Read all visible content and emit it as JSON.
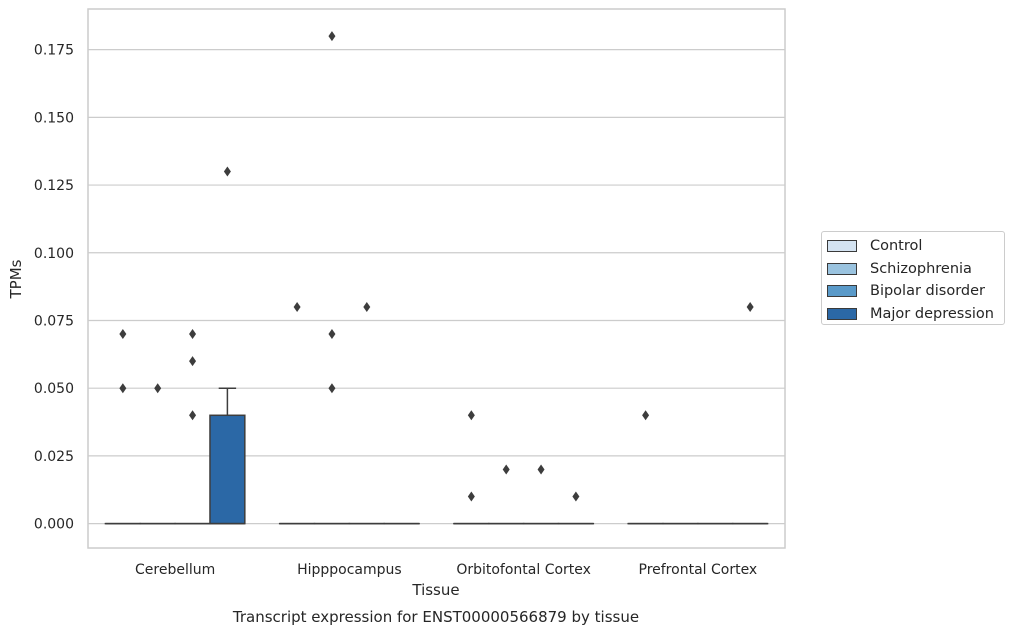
{
  "chart_data": {
    "type": "box",
    "title": "Transcript expression for ENST00000566879 by tissue",
    "xlabel": "Tissue",
    "ylabel": "TPMs",
    "categories": [
      "Cerebellum",
      "Hipppocampus",
      "Orbitofontal Cortex",
      "Prefrontal Cortex"
    ],
    "ylim": [
      -0.009,
      0.19
    ],
    "yticks": [
      "0.000",
      "0.025",
      "0.050",
      "0.075",
      "0.100",
      "0.125",
      "0.150",
      "0.175"
    ],
    "grid": true,
    "legend_position": "right",
    "series": [
      {
        "name": "Control",
        "color": "#d4e3f1",
        "boxes": [
          {
            "q1": 0,
            "median": 0,
            "q3": 0,
            "whisker_low": 0,
            "whisker_high": 0,
            "outliers": [
              0.07,
              0.05
            ]
          },
          {
            "q1": 0,
            "median": 0,
            "q3": 0,
            "whisker_low": 0,
            "whisker_high": 0,
            "outliers": [
              0.08
            ]
          },
          {
            "q1": 0,
            "median": 0,
            "q3": 0,
            "whisker_low": 0,
            "whisker_high": 0,
            "outliers": [
              0.04,
              0.01
            ]
          },
          {
            "q1": 0,
            "median": 0,
            "q3": 0,
            "whisker_low": 0,
            "whisker_high": 0,
            "outliers": [
              0.04
            ]
          }
        ]
      },
      {
        "name": "Schizophrenia",
        "color": "#9ac3df",
        "boxes": [
          {
            "q1": 0,
            "median": 0,
            "q3": 0,
            "whisker_low": 0,
            "whisker_high": 0,
            "outliers": [
              0.05
            ]
          },
          {
            "q1": 0,
            "median": 0,
            "q3": 0,
            "whisker_low": 0,
            "whisker_high": 0,
            "outliers": [
              0.18,
              0.07,
              0.05
            ]
          },
          {
            "q1": 0,
            "median": 0,
            "q3": 0,
            "whisker_low": 0,
            "whisker_high": 0,
            "outliers": [
              0.02
            ]
          },
          {
            "q1": 0,
            "median": 0,
            "q3": 0,
            "whisker_low": 0,
            "whisker_high": 0,
            "outliers": []
          }
        ]
      },
      {
        "name": "Bipolar disorder",
        "color": "#5a9ac9",
        "boxes": [
          {
            "q1": 0,
            "median": 0,
            "q3": 0,
            "whisker_low": 0,
            "whisker_high": 0,
            "outliers": [
              0.07,
              0.06,
              0.04
            ]
          },
          {
            "q1": 0,
            "median": 0,
            "q3": 0,
            "whisker_low": 0,
            "whisker_high": 0,
            "outliers": [
              0.08
            ]
          },
          {
            "q1": 0,
            "median": 0,
            "q3": 0,
            "whisker_low": 0,
            "whisker_high": 0,
            "outliers": [
              0.02
            ]
          },
          {
            "q1": 0,
            "median": 0,
            "q3": 0,
            "whisker_low": 0,
            "whisker_high": 0,
            "outliers": []
          }
        ]
      },
      {
        "name": "Major depression",
        "color": "#2b68a6",
        "boxes": [
          {
            "q1": 0,
            "median": 0,
            "q3": 0.04,
            "whisker_low": 0,
            "whisker_high": 0.05,
            "outliers": [
              0.13
            ]
          },
          {
            "q1": 0,
            "median": 0,
            "q3": 0,
            "whisker_low": 0,
            "whisker_high": 0,
            "outliers": []
          },
          {
            "q1": 0,
            "median": 0,
            "q3": 0,
            "whisker_low": 0,
            "whisker_high": 0,
            "outliers": [
              0.01
            ]
          },
          {
            "q1": 0,
            "median": 0,
            "q3": 0,
            "whisker_low": 0,
            "whisker_high": 0,
            "outliers": [
              0.08
            ]
          }
        ]
      }
    ]
  }
}
